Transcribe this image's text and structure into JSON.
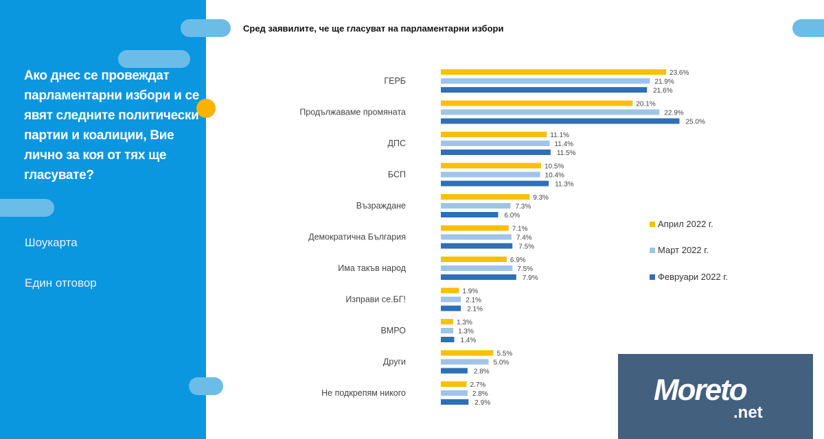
{
  "left_panel": {
    "question": "Ако днес се провеждат парламентарни избори и се явят следните политически партии и коалиции, Вие лично за коя от тях ще гласувате?",
    "note1": "Шоукарта",
    "note2": "Един отговор"
  },
  "logo_text": "Moreto.net",
  "chart_data": {
    "type": "bar",
    "orientation": "horizontal",
    "title": "Сред заявилите, че ще гласуват на парламентарни избори",
    "categories": [
      "ГЕРБ",
      "Продължаваме промяната",
      "ДПС",
      "БСП",
      "Възраждане",
      "Демократична България",
      "Има такъв народ",
      "Изправи се.БГ!",
      "ВМРО",
      "Други",
      "Не подкрепям никого"
    ],
    "series": [
      {
        "name": "Април 2022 г.",
        "color": "#fbbf0a",
        "values": [
          23.6,
          20.1,
          11.1,
          10.5,
          9.3,
          7.1,
          6.9,
          1.9,
          1.3,
          5.5,
          2.7
        ]
      },
      {
        "name": "Март 2022 г.",
        "color": "#9fc4e8",
        "values": [
          21.9,
          22.9,
          11.4,
          10.4,
          7.3,
          7.4,
          7.5,
          2.1,
          1.3,
          5.0,
          2.8
        ]
      },
      {
        "name": "Февруари 2022 г.",
        "color": "#2e6fb6",
        "values": [
          21.6,
          25.0,
          11.5,
          11.3,
          6.0,
          7.5,
          7.9,
          2.1,
          1.4,
          2.8,
          2.9
        ]
      }
    ],
    "value_format": "%",
    "legend_position": "right",
    "grid": false
  }
}
